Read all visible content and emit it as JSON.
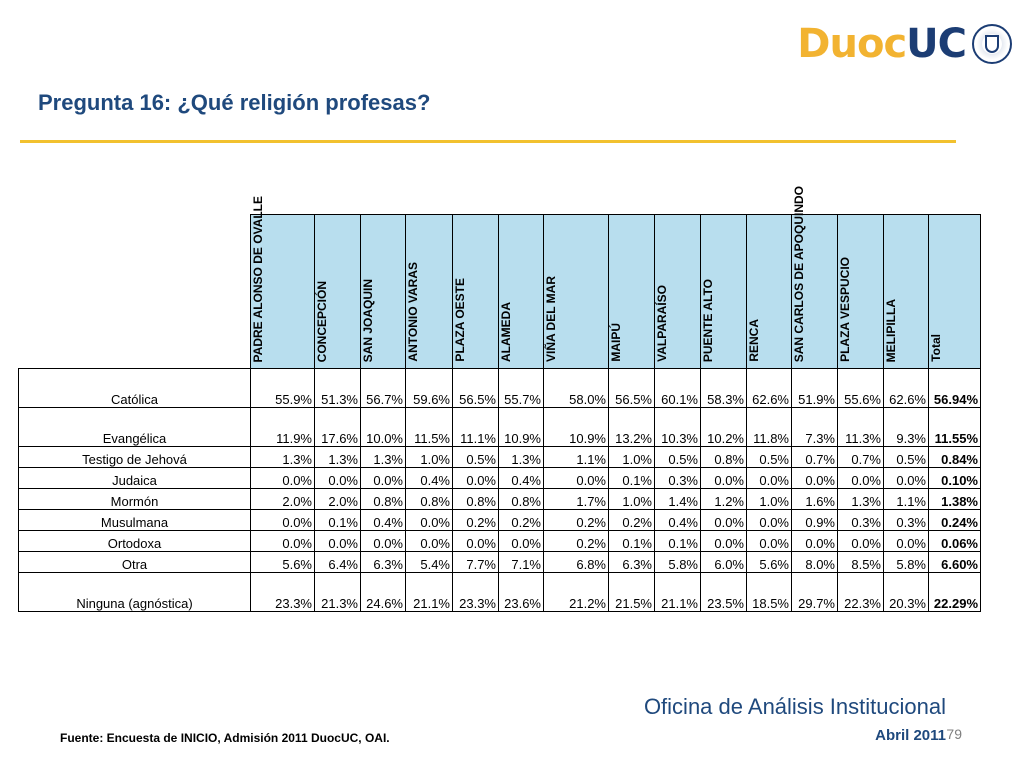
{
  "logo": {
    "duoc": "Duoc",
    "uc": "UC"
  },
  "title": "Pregunta 16: ¿Qué religión profesas?",
  "columns": [
    "PADRE ALONSO DE OVALLE",
    "CONCEPCIÓN",
    "SAN JOAQUIN",
    "ANTONIO VARAS",
    "PLAZA OESTE",
    "ALAMEDA",
    "VIÑA DEL MAR",
    "MAIPÚ",
    "VALPARAÍSO",
    "PUENTE ALTO",
    "RENCA",
    "SAN CARLOS DE APOQUINDO",
    "PLAZA VESPUCIO",
    "MELIPILLA",
    "Total"
  ],
  "rows": [
    {
      "label": "Católica",
      "values": [
        "55.9%",
        "51.3%",
        "56.7%",
        "59.6%",
        "56.5%",
        "55.7%",
        "58.0%",
        "56.5%",
        "60.1%",
        "58.3%",
        "62.6%",
        "51.9%",
        "55.6%",
        "62.6%",
        "56.94%"
      ]
    },
    {
      "label": "Evangélica",
      "values": [
        "11.9%",
        "17.6%",
        "10.0%",
        "11.5%",
        "11.1%",
        "10.9%",
        "10.9%",
        "13.2%",
        "10.3%",
        "10.2%",
        "11.8%",
        "7.3%",
        "11.3%",
        "9.3%",
        "11.55%"
      ]
    },
    {
      "label": "Testigo de Jehová",
      "values": [
        "1.3%",
        "1.3%",
        "1.3%",
        "1.0%",
        "0.5%",
        "1.3%",
        "1.1%",
        "1.0%",
        "0.5%",
        "0.8%",
        "0.5%",
        "0.7%",
        "0.7%",
        "0.5%",
        "0.84%"
      ]
    },
    {
      "label": "Judaica",
      "values": [
        "0.0%",
        "0.0%",
        "0.0%",
        "0.4%",
        "0.0%",
        "0.4%",
        "0.0%",
        "0.1%",
        "0.3%",
        "0.0%",
        "0.0%",
        "0.0%",
        "0.0%",
        "0.0%",
        "0.10%"
      ]
    },
    {
      "label": "Mormón",
      "values": [
        "2.0%",
        "2.0%",
        "0.8%",
        "0.8%",
        "0.8%",
        "0.8%",
        "1.7%",
        "1.0%",
        "1.4%",
        "1.2%",
        "1.0%",
        "1.6%",
        "1.3%",
        "1.1%",
        "1.38%"
      ]
    },
    {
      "label": "Musulmana",
      "values": [
        "0.0%",
        "0.1%",
        "0.4%",
        "0.0%",
        "0.2%",
        "0.2%",
        "0.2%",
        "0.2%",
        "0.4%",
        "0.0%",
        "0.0%",
        "0.9%",
        "0.3%",
        "0.3%",
        "0.24%"
      ]
    },
    {
      "label": "Ortodoxa",
      "values": [
        "0.0%",
        "0.0%",
        "0.0%",
        "0.0%",
        "0.0%",
        "0.0%",
        "0.2%",
        "0.1%",
        "0.1%",
        "0.0%",
        "0.0%",
        "0.0%",
        "0.0%",
        "0.0%",
        "0.06%"
      ]
    },
    {
      "label": "Otra",
      "values": [
        "5.6%",
        "6.4%",
        "6.3%",
        "5.4%",
        "7.7%",
        "7.1%",
        "6.8%",
        "6.3%",
        "5.8%",
        "6.0%",
        "5.6%",
        "8.0%",
        "8.5%",
        "5.8%",
        "6.60%"
      ]
    },
    {
      "label": "Ninguna (agnóstica)",
      "values": [
        "23.3%",
        "21.3%",
        "24.6%",
        "21.1%",
        "23.3%",
        "23.6%",
        "21.2%",
        "21.5%",
        "21.1%",
        "23.5%",
        "18.5%",
        "29.7%",
        "22.3%",
        "20.3%",
        "22.29%"
      ]
    }
  ],
  "footer": {
    "org": "Oficina de Análisis Institucional",
    "source": "Fuente: Encuesta de INICIO, Admisión 2011 DuocUC, OAI.",
    "date": "Abril 2011",
    "page_number": "79"
  },
  "colors": {
    "header_fill": "#b8deee",
    "title": "#1f497d",
    "rule": "#f2c12e",
    "logo_gold": "#f2b331",
    "logo_navy": "#1c3d74"
  }
}
